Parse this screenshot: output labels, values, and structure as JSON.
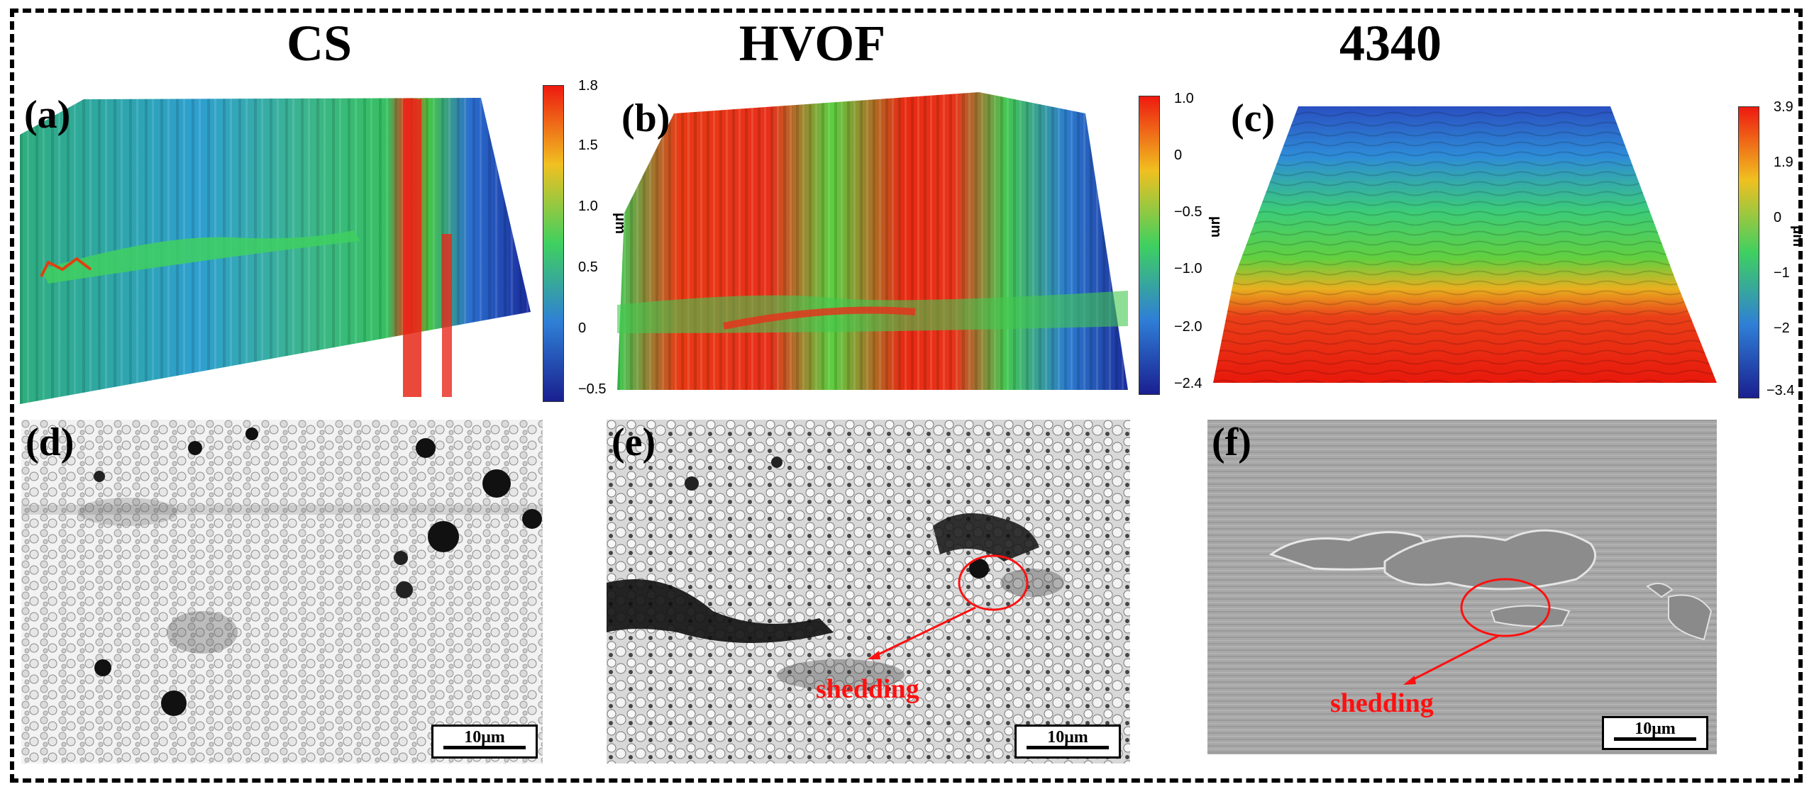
{
  "columns": {
    "cs": "CS",
    "hvof": "HVOF",
    "steel": "4340"
  },
  "panels": {
    "a": "(a)",
    "b": "(b)",
    "c": "(c)",
    "d": "(d)",
    "e": "(e)",
    "f": "(f)"
  },
  "colorbars": {
    "a": {
      "ticks": [
        "1.8",
        "1.5",
        "1.0",
        "0.5",
        "0",
        "−0.5"
      ],
      "unit": "μm"
    },
    "b": {
      "ticks": [
        "1.0",
        "0",
        "−0.5",
        "−1.0",
        "−2.0",
        "−2.4"
      ],
      "unit": "μm"
    },
    "c": {
      "ticks": [
        "3.9",
        "1.9",
        "0",
        "−1",
        "−2",
        "−3.4"
      ],
      "unit": "μm"
    }
  },
  "scale_bar": "10μm",
  "annotations": {
    "e": "shedding",
    "f": "shedding"
  },
  "colors": {
    "annotation": "#ff1010",
    "cmap": [
      "#1a1f8f",
      "#2f7fd6",
      "#3fd060",
      "#f0c020",
      "#ee1a10"
    ]
  }
}
